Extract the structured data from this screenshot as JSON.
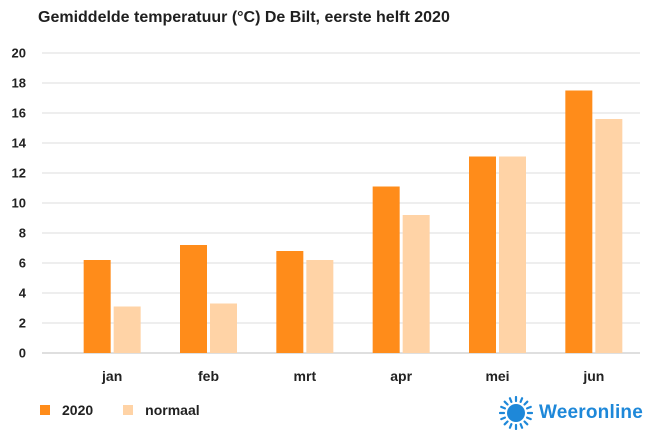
{
  "title": "Gemiddelde temperatuur (°C) De Bilt, eerste helft 2020",
  "chart_data": {
    "type": "bar",
    "title": "Gemiddelde temperatuur (°C) De Bilt, eerste helft 2020",
    "xlabel": "",
    "ylabel": "",
    "categories": [
      "jan",
      "feb",
      "mrt",
      "apr",
      "mei",
      "jun"
    ],
    "series": [
      {
        "name": "2020",
        "color": "#ff8c1a",
        "values": [
          6.2,
          7.2,
          6.8,
          11.1,
          13.1,
          17.5
        ]
      },
      {
        "name": "normaal",
        "color": "#ffd3a6",
        "values": [
          3.1,
          3.3,
          6.2,
          9.2,
          13.1,
          15.6
        ]
      }
    ],
    "ylim": [
      0,
      20
    ],
    "yticks": [
      0,
      2,
      4,
      6,
      8,
      10,
      12,
      14,
      16,
      18,
      20
    ],
    "grid": true,
    "legend_position": "bottom-left"
  },
  "legend": {
    "items": [
      {
        "label": "2020",
        "color": "#ff8c1a"
      },
      {
        "label": "normaal",
        "color": "#ffd3a6"
      }
    ]
  },
  "brand": {
    "name": "Weeronline",
    "color": "#1e88d9",
    "icon": "sun-icon"
  },
  "colors": {
    "grid": "#dcdcdc",
    "axis": "#bfbfbf",
    "text": "#222222"
  }
}
